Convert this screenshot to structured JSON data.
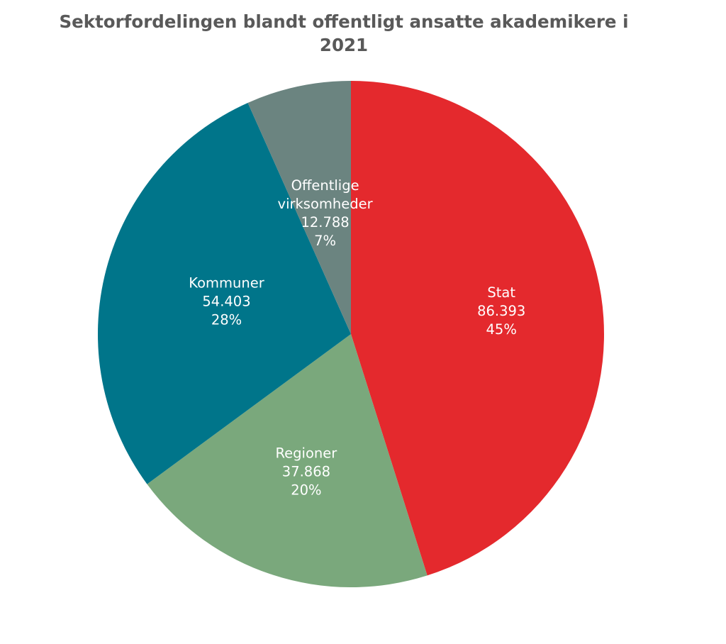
{
  "chart_data": {
    "type": "pie",
    "title": "Sektorfordelingen blandt offentligt ansatte akademikere i 2021",
    "title_lines": [
      "Sektorfordelingen blandt offentligt ansatte akademikere i",
      "2021"
    ],
    "slices": [
      {
        "label_lines": [
          "Stat"
        ],
        "value": 86393,
        "value_text": "86.393",
        "percent_text": "45%",
        "color": "#e4292d"
      },
      {
        "label_lines": [
          "Regioner"
        ],
        "value": 37868,
        "value_text": "37.868",
        "percent_text": "20%",
        "color": "#7aa87c"
      },
      {
        "label_lines": [
          "Kommuner"
        ],
        "value": 54403,
        "value_text": "54.403",
        "percent_text": "28%",
        "color": "#00758a"
      },
      {
        "label_lines": [
          "Offentlige",
          "virksomheder"
        ],
        "value": 12788,
        "value_text": "12.788",
        "percent_text": "7%",
        "color": "#6b8480"
      }
    ],
    "start_angle_deg": 0,
    "direction": "clockwise",
    "legend": "none",
    "data_labels": "inside"
  }
}
